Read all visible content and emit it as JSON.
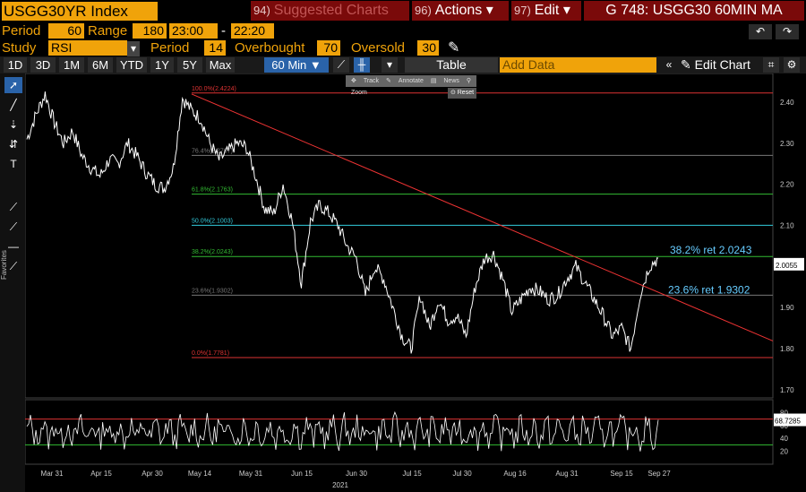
{
  "header": {
    "ticker": "USGG30YR Index",
    "suggested": {
      "num": "94)",
      "label": "Suggested Charts"
    },
    "actions": {
      "num": "96)",
      "label": "Actions ▾"
    },
    "edit": {
      "num": "97)",
      "label": "Edit ▾"
    },
    "chart_title": "G 748: USGG30 60MIN MA"
  },
  "params": {
    "period_label": "Period",
    "period_value": "60",
    "range_label": "Range",
    "range_start": "180",
    "range_from": "23:00",
    "range_dash": "-",
    "range_to": "22:20",
    "study_label": "Study",
    "study_value": "RSI",
    "study_period_label": "Period",
    "study_period_value": "14",
    "overbought_label": "Overbought",
    "overbought_value": "70",
    "oversold_label": "Oversold",
    "oversold_value": "30"
  },
  "toolbar": {
    "timeframes": [
      "1D",
      "3D",
      "1M",
      "6M",
      "YTD",
      "1Y",
      "5Y",
      "Max"
    ],
    "active_interval": "60 Min ▼",
    "table_label": "Table",
    "add_data_placeholder": "Add Data",
    "edit_chart_label": "Edit Chart"
  },
  "floatbar": {
    "track": "Track",
    "annotate": "Annotate",
    "news": "News",
    "zoom": "Zoom",
    "reset": "Reset"
  },
  "sidebar": {
    "favorites": "Favorites"
  },
  "chart_data": {
    "type": "line",
    "price_axis": {
      "ticks": [
        2.4,
        2.3,
        2.2,
        2.1,
        1.9,
        1.8,
        1.7
      ],
      "range": [
        1.68,
        2.47
      ]
    },
    "last_price": "2.0055",
    "fib_levels": [
      {
        "label": "100.0%(2.4224)",
        "value": 2.4224,
        "color": "#d33"
      },
      {
        "label": "76.4%(2.2707)",
        "value": 2.2707,
        "color": "#777"
      },
      {
        "label": "61.8%(2.1763)",
        "value": 2.1763,
        "color": "#3b3"
      },
      {
        "label": "50.0%(2.1003)",
        "value": 2.1003,
        "color": "#3cd"
      },
      {
        "label": "38.2%(2.0243)",
        "value": 2.0243,
        "color": "#3b3"
      },
      {
        "label": "23.6%(1.9302)",
        "value": 1.9302,
        "color": "#777"
      },
      {
        "label": "0.0%(1.7781)",
        "value": 1.7781,
        "color": "#d33"
      }
    ],
    "annotations": [
      {
        "text": "38.2% ret 2.0243",
        "value": 2.0243
      },
      {
        "text": "23.6% ret 1.9302",
        "value": 1.9302
      }
    ],
    "trendline": {
      "from": {
        "date": "May 14",
        "value": 2.42
      },
      "to": {
        "date": "Sep 27+",
        "value": 1.81
      }
    },
    "series": [
      {
        "values": [
          2.31,
          2.37,
          2.42,
          2.35,
          2.3,
          2.33,
          2.27,
          2.24,
          2.22,
          2.26,
          2.25,
          2.3,
          2.27,
          2.23,
          2.2,
          2.19,
          2.24,
          2.41,
          2.38,
          2.36,
          2.3,
          2.26,
          2.28,
          2.3,
          2.29,
          2.22,
          2.14,
          2.13,
          2.2,
          2.11,
          1.96,
          2.11,
          2.15,
          2.13,
          2.1,
          2.05,
          2.02,
          1.93,
          2.0,
          1.97,
          1.9,
          1.83,
          1.8,
          1.93,
          1.85,
          1.92,
          1.87,
          1.88,
          1.83,
          1.95,
          2.02,
          2.03,
          1.97,
          1.89,
          1.92,
          1.95,
          1.94,
          1.92,
          1.93,
          1.97,
          2.0,
          1.96,
          1.92,
          1.88,
          1.83,
          1.85,
          1.8,
          1.93,
          2.0,
          2.02
        ]
      }
    ],
    "rsi": {
      "ticks": [
        80,
        60,
        40,
        20
      ],
      "last": "68.7285",
      "overbought": 70,
      "oversold": 30
    },
    "x_axis": {
      "ticks": [
        "Mar 31",
        "Apr 15",
        "Apr 30",
        "May 14",
        "May 31",
        "Jun 15",
        "Jun 30",
        "Jul 15",
        "Jul 30",
        "Aug 16",
        "Aug 31",
        "Sep 15",
        "Sep 27"
      ],
      "year": "2021"
    }
  }
}
